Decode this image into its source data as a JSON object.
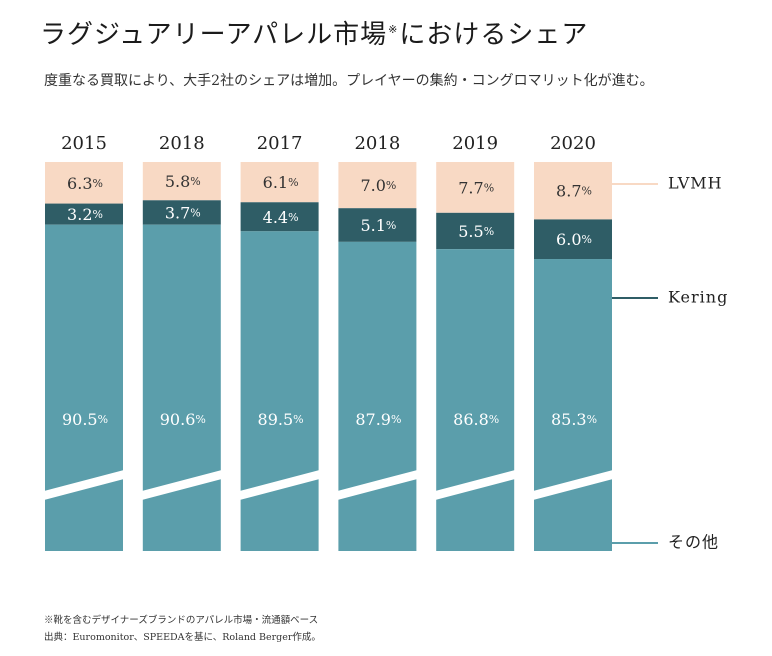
{
  "title": "ラグジュアリーアパレル市場",
  "title_mark": "※",
  "title_suffix": "におけるシェア",
  "subtitle": "度重なる買取により、大手2社のシェアは増加。プレイヤーの集約・コングロマリット化が進む。",
  "footnotes": [
    "※靴を含むデザイナーズブランドのアパレル市場・流通額ベース",
    "出典：Euromonitor、SPEEDAを基に、Roland Berger作成。"
  ],
  "colors": {
    "lvmh": "#f8d9c4",
    "kering": "#2f5d66",
    "other": "#5b9eab",
    "label_dark": "#333333",
    "label_light": "#ffffff"
  },
  "chart_data": {
    "type": "bar",
    "stacked": true,
    "normalized_percent": true,
    "axis_broken": true,
    "categories": [
      "2015",
      "2018",
      "2017",
      "2018",
      "2019",
      "2020"
    ],
    "series": [
      {
        "name": "その他",
        "values": [
          90.5,
          90.6,
          89.5,
          87.9,
          86.8,
          85.3
        ]
      },
      {
        "name": "Kering",
        "values": [
          3.2,
          3.7,
          4.4,
          5.1,
          5.5,
          6.0
        ]
      },
      {
        "name": "LVMH",
        "values": [
          6.3,
          5.8,
          6.1,
          7.0,
          7.7,
          8.7
        ]
      }
    ],
    "value_suffix": "%",
    "legend_position": "right"
  }
}
